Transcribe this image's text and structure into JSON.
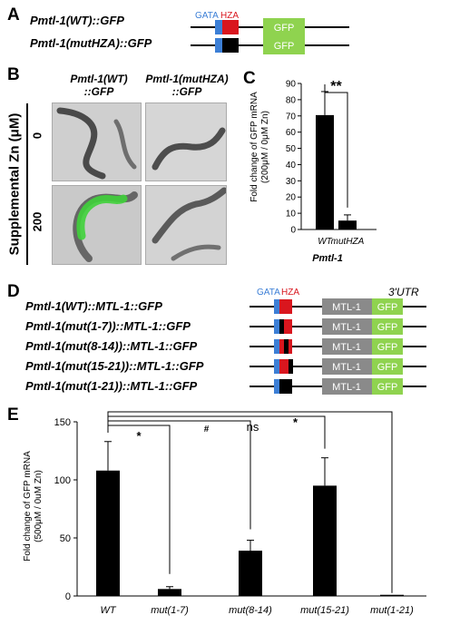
{
  "panels": {
    "a": {
      "letter": "A",
      "labels": {
        "gata": "GATA",
        "hza": "HZA",
        "gfp": "GFP"
      },
      "constructs": [
        "Pmtl-1(WT)::GFP",
        "Pmtl-1(mutHZA)::GFP"
      ]
    },
    "b": {
      "letter": "B",
      "col_headers": [
        {
          "line1": "Pmtl-1(WT)",
          "line2": "::GFP"
        },
        {
          "line1": "Pmtl-1(mutHZA)",
          "line2": "::GFP"
        }
      ],
      "row_axis_label": "Supplemental Zn (μM)",
      "rows": [
        "0",
        "200"
      ]
    },
    "c": {
      "letter": "C",
      "significance": "**",
      "group_label": "Pmtl-1"
    },
    "d": {
      "letter": "D",
      "labels": {
        "gata": "GATA",
        "hza": "HZA",
        "mtl": "MTL-1",
        "gfp": "GFP",
        "utr": "3'UTR"
      },
      "constructs": [
        "Pmtl-1(WT)::MTL-1::GFP",
        "Pmtl-1(mut(1-7))::MTL-1::GFP",
        "Pmtl-1(mut(8-14))::MTL-1::GFP",
        "Pmtl-1(mut(15-21))::MTL-1::GFP",
        "Pmtl-1(mut(1-21))::MTL-1::GFP"
      ]
    },
    "e": {
      "letter": "E",
      "significance": [
        "*",
        "#",
        "ns",
        "*"
      ]
    }
  },
  "colors": {
    "gata": "#3c7fd6",
    "hza": "#d9161e",
    "gfp": "#8fd34f",
    "mtl": "#8a8a8a",
    "bar": "#000000"
  },
  "chart_data": [
    {
      "type": "bar",
      "panel": "C",
      "categories": [
        "WT",
        "mutHZA"
      ],
      "values": [
        70.5,
        5.5
      ],
      "errors": [
        14.5,
        3.5
      ],
      "ylabel": "Fold change of GFP mRNA (200μM / 0μM Zn)",
      "xlabel": "Pmtl-1",
      "ylim": [
        0,
        90
      ],
      "yticks": [
        0,
        10,
        20,
        30,
        40,
        50,
        60,
        70,
        80,
        90
      ]
    },
    {
      "type": "bar",
      "panel": "E",
      "categories": [
        "WT",
        "mut(1-7)",
        "mut(8-14)",
        "mut(15-21)",
        "mut(1-21)"
      ],
      "values": [
        108,
        6,
        39,
        95,
        1
      ],
      "errors": [
        25,
        2,
        9,
        24,
        0
      ],
      "ylabel": "Fold change of GFP mRNA (500μM / 0uM Zn)",
      "ylim": [
        0,
        150
      ],
      "yticks": [
        0,
        50,
        100,
        150
      ]
    }
  ]
}
